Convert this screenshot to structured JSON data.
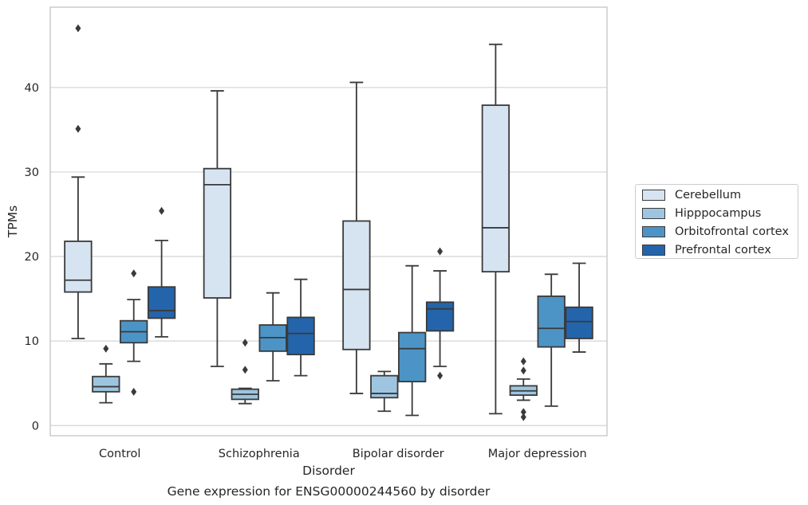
{
  "chart_data": {
    "type": "box",
    "title": "Gene expression for ENSG00000244560 by disorder",
    "xlabel": "Disorder",
    "ylabel": "TPMs",
    "ylim": [
      -1.2,
      49.5
    ],
    "yticks": [
      "0",
      "10",
      "20",
      "30",
      "40"
    ],
    "grid": "horizontal",
    "legend_position": "right",
    "categories": [
      "Control",
      "Schizophrenia",
      "Bipolar disorder",
      "Major depression"
    ],
    "series": [
      {
        "name": "Cerebellum",
        "color": "#d6e4f2",
        "boxes": [
          {
            "whisker_low": 10.3,
            "q1": 15.8,
            "median": 17.2,
            "q3": 21.8,
            "whisker_high": 29.4,
            "outliers": [
              35.1,
              47.0
            ]
          },
          {
            "whisker_low": 7.0,
            "q1": 15.1,
            "median": 28.5,
            "q3": 30.4,
            "whisker_high": 39.6,
            "outliers": []
          },
          {
            "whisker_low": 3.8,
            "q1": 9.0,
            "median": 16.1,
            "q3": 24.2,
            "whisker_high": 40.6,
            "outliers": []
          },
          {
            "whisker_low": 1.4,
            "q1": 18.2,
            "median": 23.4,
            "q3": 37.9,
            "whisker_high": 45.1,
            "outliers": []
          }
        ]
      },
      {
        "name": "Hipppocampus",
        "color": "#9dc5df",
        "boxes": [
          {
            "whisker_low": 2.7,
            "q1": 4.0,
            "median": 4.6,
            "q3": 5.8,
            "whisker_high": 7.3,
            "outliers": [
              9.1
            ]
          },
          {
            "whisker_low": 2.6,
            "q1": 3.1,
            "median": 3.7,
            "q3": 4.3,
            "whisker_high": 4.4,
            "outliers": [
              6.6,
              9.8
            ]
          },
          {
            "whisker_low": 1.7,
            "q1": 3.3,
            "median": 3.8,
            "q3": 5.9,
            "whisker_high": 6.4,
            "outliers": []
          },
          {
            "whisker_low": 3.0,
            "q1": 3.6,
            "median": 4.1,
            "q3": 4.7,
            "whisker_high": 5.5,
            "outliers": [
              1.0,
              1.6,
              6.5,
              7.6
            ]
          }
        ]
      },
      {
        "name": "Orbitofrontal cortex",
        "color": "#4d94c6",
        "boxes": [
          {
            "whisker_low": 7.6,
            "q1": 9.8,
            "median": 11.1,
            "q3": 12.4,
            "whisker_high": 14.9,
            "outliers": [
              4.0,
              18.0
            ]
          },
          {
            "whisker_low": 5.3,
            "q1": 8.8,
            "median": 10.4,
            "q3": 11.9,
            "whisker_high": 15.7,
            "outliers": []
          },
          {
            "whisker_low": 1.2,
            "q1": 5.2,
            "median": 9.1,
            "q3": 11.0,
            "whisker_high": 18.9,
            "outliers": []
          },
          {
            "whisker_low": 2.3,
            "q1": 9.3,
            "median": 11.5,
            "q3": 15.3,
            "whisker_high": 17.9,
            "outliers": []
          }
        ]
      },
      {
        "name": "Prefrontal cortex",
        "color": "#2464aa",
        "boxes": [
          {
            "whisker_low": 10.5,
            "q1": 12.7,
            "median": 13.6,
            "q3": 16.4,
            "whisker_high": 21.9,
            "outliers": [
              25.4
            ]
          },
          {
            "whisker_low": 5.9,
            "q1": 8.4,
            "median": 10.9,
            "q3": 12.8,
            "whisker_high": 17.3,
            "outliers": []
          },
          {
            "whisker_low": 7.0,
            "q1": 11.2,
            "median": 13.8,
            "q3": 14.6,
            "whisker_high": 18.3,
            "outliers": [
              5.9,
              20.6
            ]
          },
          {
            "whisker_low": 8.7,
            "q1": 10.3,
            "median": 12.3,
            "q3": 14.0,
            "whisker_high": 19.2,
            "outliers": []
          }
        ]
      }
    ]
  }
}
